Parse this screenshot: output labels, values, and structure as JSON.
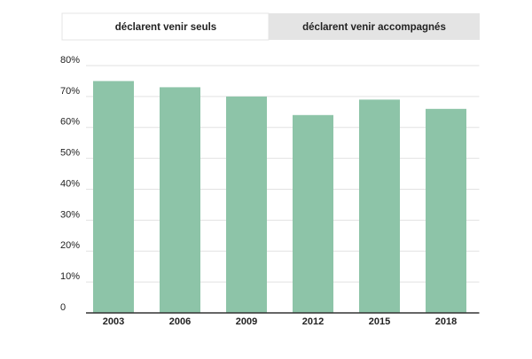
{
  "tabs": [
    "déclarent venir seuls",
    "déclarent venir accompagnés"
  ],
  "chart_data": {
    "type": "bar",
    "categories": [
      "2003",
      "2006",
      "2009",
      "2012",
      "2015",
      "2018"
    ],
    "values": [
      75,
      73,
      70,
      64,
      69,
      66
    ],
    "color": "#8dc4a8",
    "ylim": [
      0,
      80
    ],
    "yticks": [
      0,
      {
        "value": 10,
        "label": "10%"
      },
      {
        "value": 20,
        "label": "20%"
      },
      {
        "value": 30,
        "label": "30%"
      },
      {
        "value": 40,
        "label": "40%"
      },
      {
        "value": 50,
        "label": "50%"
      },
      {
        "value": 60,
        "label": "60%"
      },
      {
        "value": 70,
        "label": "70%"
      },
      {
        "value": 80,
        "label": "80%"
      }
    ],
    "grid": true
  }
}
